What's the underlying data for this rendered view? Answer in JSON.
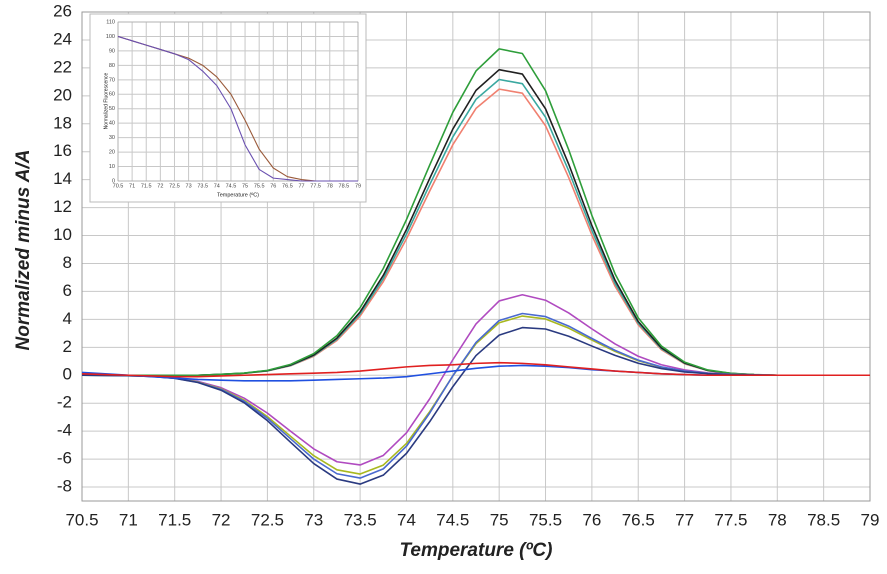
{
  "chart_data": [
    {
      "type": "line",
      "xlabel": "Temperature (ºC)",
      "ylabel": "Normalized minus A/A",
      "x": [
        70.5,
        70.75,
        71,
        71.25,
        71.5,
        71.75,
        72,
        72.25,
        72.5,
        72.75,
        73,
        73.25,
        73.5,
        73.75,
        74,
        74.25,
        74.5,
        74.75,
        75,
        75.25,
        75.5,
        75.75,
        76,
        76.25,
        76.5,
        76.75,
        77,
        77.25,
        77.5,
        77.75,
        78,
        78.25,
        78.5,
        78.75,
        79
      ],
      "xlim": [
        70.5,
        79
      ],
      "xticks": [
        70.5,
        71,
        71.5,
        72,
        72.5,
        73,
        73.5,
        74,
        74.5,
        75,
        75.5,
        76,
        76.5,
        77,
        77.5,
        78,
        78.5,
        79
      ],
      "ylim": [
        -9,
        26
      ],
      "yticks": [
        -8,
        -6,
        -4,
        -2,
        0,
        2,
        4,
        6,
        8,
        10,
        12,
        14,
        16,
        18,
        20,
        22,
        24,
        26
      ],
      "grid": true,
      "series": [
        {
          "color": "#f08070",
          "values": [
            0,
            0,
            0,
            0,
            0,
            0,
            0.06,
            0.14,
            0.31,
            0.68,
            1.36,
            2.49,
            4.24,
            6.7,
            9.76,
            13.18,
            16.5,
            19.1,
            20.48,
            20.19,
            17.86,
            14.15,
            10.03,
            6.37,
            3.61,
            1.83,
            0.82,
            0.33,
            0.12,
            0.04,
            0,
            0,
            0,
            0,
            0
          ]
        },
        {
          "color": "#3aa8a0",
          "values": [
            0,
            0,
            0,
            0,
            0,
            0,
            0.06,
            0.15,
            0.32,
            0.7,
            1.41,
            2.58,
            4.39,
            6.92,
            10.1,
            13.63,
            17.06,
            19.75,
            21.17,
            20.87,
            18.47,
            14.63,
            10.37,
            6.58,
            3.73,
            1.9,
            0.85,
            0.34,
            0.13,
            0.04,
            0,
            0,
            0,
            0,
            0
          ]
        },
        {
          "color": "#202020",
          "values": [
            0,
            0,
            0,
            0,
            0,
            0,
            0.07,
            0.15,
            0.33,
            0.73,
            1.45,
            2.66,
            4.53,
            7.15,
            10.43,
            14.08,
            17.62,
            20.39,
            21.87,
            21.56,
            19.07,
            15.11,
            10.71,
            6.8,
            3.85,
            1.96,
            0.88,
            0.35,
            0.13,
            0.04,
            0,
            0,
            0,
            0,
            0
          ]
        },
        {
          "color": "#2e9e3a",
          "values": [
            0,
            0,
            0,
            0,
            0,
            0,
            0.07,
            0.16,
            0.35,
            0.78,
            1.55,
            2.84,
            4.84,
            7.64,
            11.14,
            15.04,
            18.82,
            21.78,
            23.36,
            23.03,
            20.37,
            16.14,
            11.44,
            7.26,
            4.11,
            2.09,
            0.94,
            0.38,
            0.14,
            0.05,
            0,
            0,
            0,
            0,
            0
          ]
        },
        {
          "color": "#b04ac0",
          "values": [
            0,
            0,
            -0.03,
            -0.07,
            -0.18,
            -0.44,
            -0.89,
            -1.64,
            -2.71,
            -4.01,
            -5.27,
            -6.19,
            -6.42,
            -5.74,
            -4.12,
            -1.69,
            1.11,
            3.67,
            5.32,
            5.76,
            5.37,
            4.46,
            3.32,
            2.24,
            1.36,
            0.75,
            0.38,
            0.17,
            0.07,
            0.03,
            0,
            0,
            0,
            0,
            0
          ]
        },
        {
          "color": "#a8b820",
          "values": [
            0,
            -0.01,
            -0.03,
            -0.08,
            -0.2,
            -0.48,
            -0.97,
            -1.79,
            -2.96,
            -4.37,
            -5.76,
            -6.77,
            -7.07,
            -6.43,
            -4.88,
            -2.61,
            -0.05,
            2.26,
            3.76,
            4.24,
            4.03,
            3.37,
            2.52,
            1.71,
            1.04,
            0.57,
            0.29,
            0.13,
            0.05,
            0.02,
            0,
            0,
            0,
            0,
            0
          ]
        },
        {
          "color": "#4a6ad0",
          "values": [
            0,
            -0.01,
            -0.03,
            -0.08,
            -0.21,
            -0.5,
            -1.01,
            -1.87,
            -3.08,
            -4.55,
            -6,
            -7.05,
            -7.36,
            -6.7,
            -5.08,
            -2.71,
            -0.04,
            2.35,
            3.92,
            4.42,
            4.2,
            3.52,
            2.63,
            1.78,
            1.08,
            0.6,
            0.3,
            0.14,
            0.06,
            0.02,
            0,
            0,
            0,
            0,
            0
          ]
        },
        {
          "color": "#2a3a80",
          "values": [
            0,
            -0.01,
            -0.03,
            -0.09,
            -0.22,
            -0.52,
            -1.07,
            -1.97,
            -3.25,
            -4.8,
            -6.32,
            -7.43,
            -7.79,
            -7.15,
            -5.59,
            -3.33,
            -0.82,
            1.41,
            2.87,
            3.41,
            3.31,
            2.79,
            2.09,
            1.42,
            0.86,
            0.48,
            0.24,
            0.11,
            0.04,
            0.02,
            0,
            0,
            0,
            0,
            0
          ]
        },
        {
          "color": "#2050e0",
          "values": [
            0.2,
            0.1,
            0,
            -0.1,
            -0.2,
            -0.3,
            -0.35,
            -0.4,
            -0.4,
            -0.4,
            -0.35,
            -0.3,
            -0.25,
            -0.2,
            -0.1,
            0.1,
            0.3,
            0.5,
            0.65,
            0.7,
            0.65,
            0.55,
            0.4,
            0.3,
            0.2,
            0.1,
            0.05,
            0,
            0,
            0,
            0,
            0,
            0,
            0,
            0
          ]
        },
        {
          "color": "#e02020",
          "values": [
            0.1,
            0.05,
            0,
            -0.05,
            -0.1,
            -0.1,
            -0.05,
            0,
            0.05,
            0.1,
            0.15,
            0.2,
            0.3,
            0.45,
            0.6,
            0.7,
            0.75,
            0.85,
            0.9,
            0.85,
            0.75,
            0.6,
            0.45,
            0.3,
            0.2,
            0.1,
            0.05,
            0,
            0,
            0,
            0,
            0,
            0,
            0,
            0
          ]
        }
      ]
    },
    {
      "type": "line",
      "xlabel": "Temperature (ºC)",
      "ylabel": "Normalized Fluorescence",
      "x": [
        70.5,
        71,
        71.5,
        72,
        72.5,
        73,
        73.5,
        74,
        74.5,
        75,
        75.5,
        76,
        76.5,
        77,
        77.5,
        78,
        78.5,
        79
      ],
      "xlim": [
        70.5,
        79
      ],
      "xticks": [
        70.5,
        71,
        71.5,
        72,
        72.5,
        73,
        73.5,
        74,
        74.5,
        75,
        75.5,
        76,
        76.5,
        77,
        77.5,
        78,
        78.5,
        79
      ],
      "ylim": [
        0,
        110
      ],
      "yticks": [
        0,
        10,
        20,
        30,
        40,
        50,
        60,
        70,
        80,
        90,
        100,
        110
      ],
      "grid": true,
      "series": [
        {
          "color": "#9a5a3a",
          "values": [
            100,
            97,
            94,
            91,
            88,
            85,
            80,
            72,
            60,
            42,
            22,
            9,
            3,
            1,
            0,
            0,
            0,
            0
          ]
        },
        {
          "color": "#6a50b0",
          "values": [
            100,
            97,
            94,
            91,
            88,
            84,
            76,
            66,
            50,
            25,
            8,
            2,
            1,
            0,
            0,
            0,
            0,
            0
          ]
        }
      ]
    }
  ]
}
